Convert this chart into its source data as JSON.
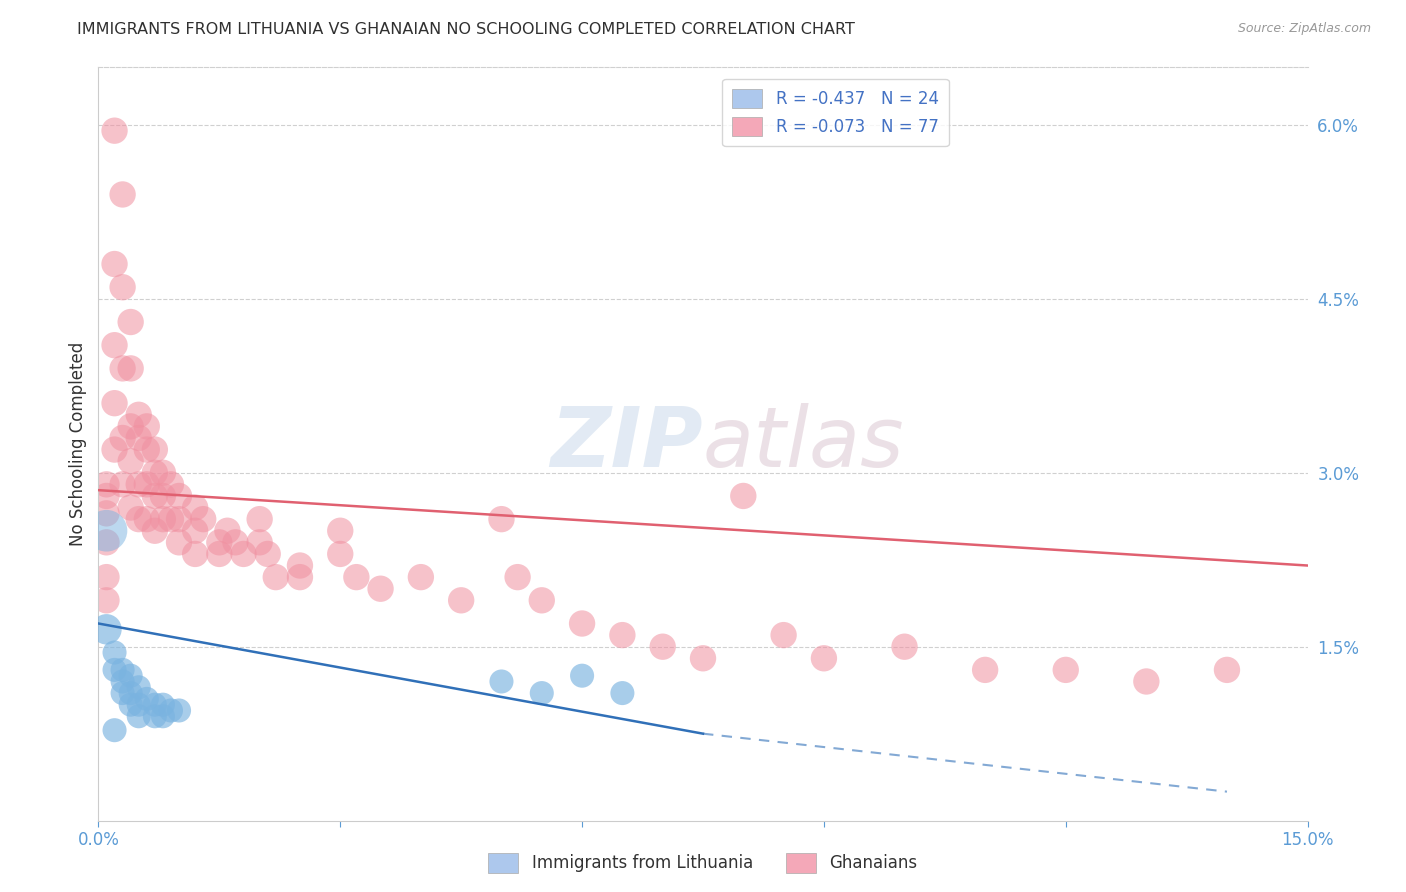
{
  "title": "IMMIGRANTS FROM LITHUANIA VS GHANAIAN NO SCHOOLING COMPLETED CORRELATION CHART",
  "source": "Source: ZipAtlas.com",
  "ylabel": "No Schooling Completed",
  "watermark_zip": "ZIP",
  "watermark_atlas": "atlas",
  "xlim": [
    0.0,
    0.15
  ],
  "ylim": [
    0.0,
    0.065
  ],
  "legend1_label": "R = -0.437   N = 24",
  "legend2_label": "R = -0.073   N = 77",
  "legend1_color": "#adc8ed",
  "legend2_color": "#f4a8b8",
  "blue_color": "#7ab3e0",
  "pink_color": "#f090a0",
  "blue_line_color": "#3070b8",
  "pink_line_color": "#e06070",
  "background_color": "#ffffff",
  "grid_color": "#d0d0d0",
  "title_color": "#303030",
  "right_tick_color": "#5b9bd5",
  "blue_points": [
    [
      0.001,
      0.0165,
      80
    ],
    [
      0.002,
      0.0145,
      50
    ],
    [
      0.002,
      0.013,
      50
    ],
    [
      0.003,
      0.013,
      50
    ],
    [
      0.003,
      0.012,
      50
    ],
    [
      0.003,
      0.011,
      50
    ],
    [
      0.004,
      0.0125,
      50
    ],
    [
      0.004,
      0.011,
      50
    ],
    [
      0.004,
      0.01,
      50
    ],
    [
      0.005,
      0.0115,
      50
    ],
    [
      0.005,
      0.01,
      50
    ],
    [
      0.005,
      0.009,
      50
    ],
    [
      0.006,
      0.0105,
      50
    ],
    [
      0.007,
      0.01,
      50
    ],
    [
      0.007,
      0.009,
      50
    ],
    [
      0.008,
      0.01,
      50
    ],
    [
      0.008,
      0.009,
      50
    ],
    [
      0.009,
      0.0095,
      50
    ],
    [
      0.01,
      0.0095,
      50
    ],
    [
      0.05,
      0.012,
      50
    ],
    [
      0.055,
      0.011,
      50
    ],
    [
      0.06,
      0.0125,
      50
    ],
    [
      0.065,
      0.011,
      50
    ],
    [
      0.002,
      0.0078,
      50
    ]
  ],
  "pink_points": [
    [
      0.001,
      0.029,
      60
    ],
    [
      0.001,
      0.028,
      60
    ],
    [
      0.001,
      0.0265,
      60
    ],
    [
      0.001,
      0.024,
      60
    ],
    [
      0.001,
      0.021,
      60
    ],
    [
      0.001,
      0.019,
      60
    ],
    [
      0.002,
      0.0595,
      60
    ],
    [
      0.002,
      0.048,
      60
    ],
    [
      0.002,
      0.041,
      60
    ],
    [
      0.002,
      0.036,
      60
    ],
    [
      0.002,
      0.032,
      60
    ],
    [
      0.003,
      0.054,
      60
    ],
    [
      0.003,
      0.046,
      60
    ],
    [
      0.003,
      0.039,
      60
    ],
    [
      0.003,
      0.033,
      60
    ],
    [
      0.003,
      0.029,
      60
    ],
    [
      0.004,
      0.043,
      60
    ],
    [
      0.004,
      0.039,
      60
    ],
    [
      0.004,
      0.034,
      60
    ],
    [
      0.004,
      0.031,
      60
    ],
    [
      0.004,
      0.027,
      60
    ],
    [
      0.005,
      0.035,
      60
    ],
    [
      0.005,
      0.033,
      60
    ],
    [
      0.005,
      0.029,
      60
    ],
    [
      0.005,
      0.026,
      60
    ],
    [
      0.006,
      0.034,
      60
    ],
    [
      0.006,
      0.032,
      60
    ],
    [
      0.006,
      0.029,
      60
    ],
    [
      0.006,
      0.026,
      60
    ],
    [
      0.007,
      0.032,
      60
    ],
    [
      0.007,
      0.03,
      60
    ],
    [
      0.007,
      0.028,
      60
    ],
    [
      0.007,
      0.025,
      60
    ],
    [
      0.008,
      0.03,
      60
    ],
    [
      0.008,
      0.028,
      60
    ],
    [
      0.008,
      0.026,
      60
    ],
    [
      0.009,
      0.029,
      60
    ],
    [
      0.009,
      0.026,
      60
    ],
    [
      0.01,
      0.028,
      60
    ],
    [
      0.01,
      0.026,
      60
    ],
    [
      0.01,
      0.024,
      60
    ],
    [
      0.012,
      0.027,
      60
    ],
    [
      0.012,
      0.025,
      60
    ],
    [
      0.012,
      0.023,
      60
    ],
    [
      0.013,
      0.026,
      60
    ],
    [
      0.015,
      0.024,
      60
    ],
    [
      0.015,
      0.023,
      60
    ],
    [
      0.016,
      0.025,
      60
    ],
    [
      0.017,
      0.024,
      60
    ],
    [
      0.018,
      0.023,
      60
    ],
    [
      0.02,
      0.026,
      60
    ],
    [
      0.02,
      0.024,
      60
    ],
    [
      0.021,
      0.023,
      60
    ],
    [
      0.022,
      0.021,
      60
    ],
    [
      0.025,
      0.022,
      60
    ],
    [
      0.025,
      0.021,
      60
    ],
    [
      0.03,
      0.025,
      60
    ],
    [
      0.03,
      0.023,
      60
    ],
    [
      0.032,
      0.021,
      60
    ],
    [
      0.035,
      0.02,
      60
    ],
    [
      0.04,
      0.021,
      60
    ],
    [
      0.045,
      0.019,
      60
    ],
    [
      0.05,
      0.026,
      60
    ],
    [
      0.052,
      0.021,
      60
    ],
    [
      0.055,
      0.019,
      60
    ],
    [
      0.06,
      0.017,
      60
    ],
    [
      0.065,
      0.016,
      60
    ],
    [
      0.07,
      0.015,
      60
    ],
    [
      0.075,
      0.014,
      60
    ],
    [
      0.08,
      0.028,
      60
    ],
    [
      0.085,
      0.016,
      60
    ],
    [
      0.09,
      0.014,
      60
    ],
    [
      0.1,
      0.015,
      60
    ],
    [
      0.11,
      0.013,
      60
    ],
    [
      0.12,
      0.013,
      60
    ],
    [
      0.13,
      0.012,
      60
    ],
    [
      0.14,
      0.013,
      60
    ]
  ],
  "blue_line": [
    [
      0.0,
      0.017
    ],
    [
      0.075,
      0.0075
    ]
  ],
  "pink_line": [
    [
      0.0,
      0.0285
    ],
    [
      0.15,
      0.022
    ]
  ]
}
